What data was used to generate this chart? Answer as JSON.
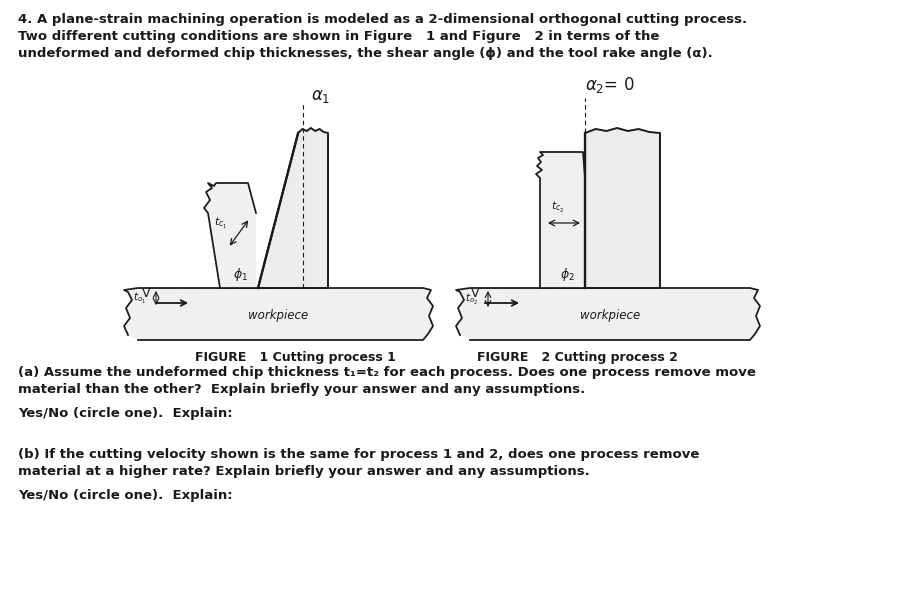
{
  "bg_color": "#ffffff",
  "text_color": "#000000",
  "line_color": "#1a1a1a",
  "fig1_caption": "FIGURE   1 Cutting process 1",
  "fig2_caption": "FIGURE   2 Cutting process 2",
  "intro_line1": "4. A plane-strain machining operation is modeled as a 2-dimensional orthogonal cutting process.",
  "intro_line2": "Two different cutting conditions are shown in Figure   1 and Figure   2 in terms of the",
  "intro_line3": "undeformed and deformed chip thicknesses, the shear angle (ϕ) and the tool rake angle (α).",
  "part_a_line1": "(a) Assume the undeformed chip thickness t₁=t₂ for each process. Does one process remove move",
  "part_a_line2": "material than the other?  Explain briefly your answer and any assumptions.",
  "part_a_ans": "Yes/No (circle one).  Explain:",
  "part_b_line1": "(b) If the cutting velocity shown is the same for process 1 and 2, does one process remove",
  "part_b_line2": "material at a higher rate? Explain briefly your answer and any assumptions.",
  "part_b_ans": "Yes/No (circle one).  Explain:"
}
